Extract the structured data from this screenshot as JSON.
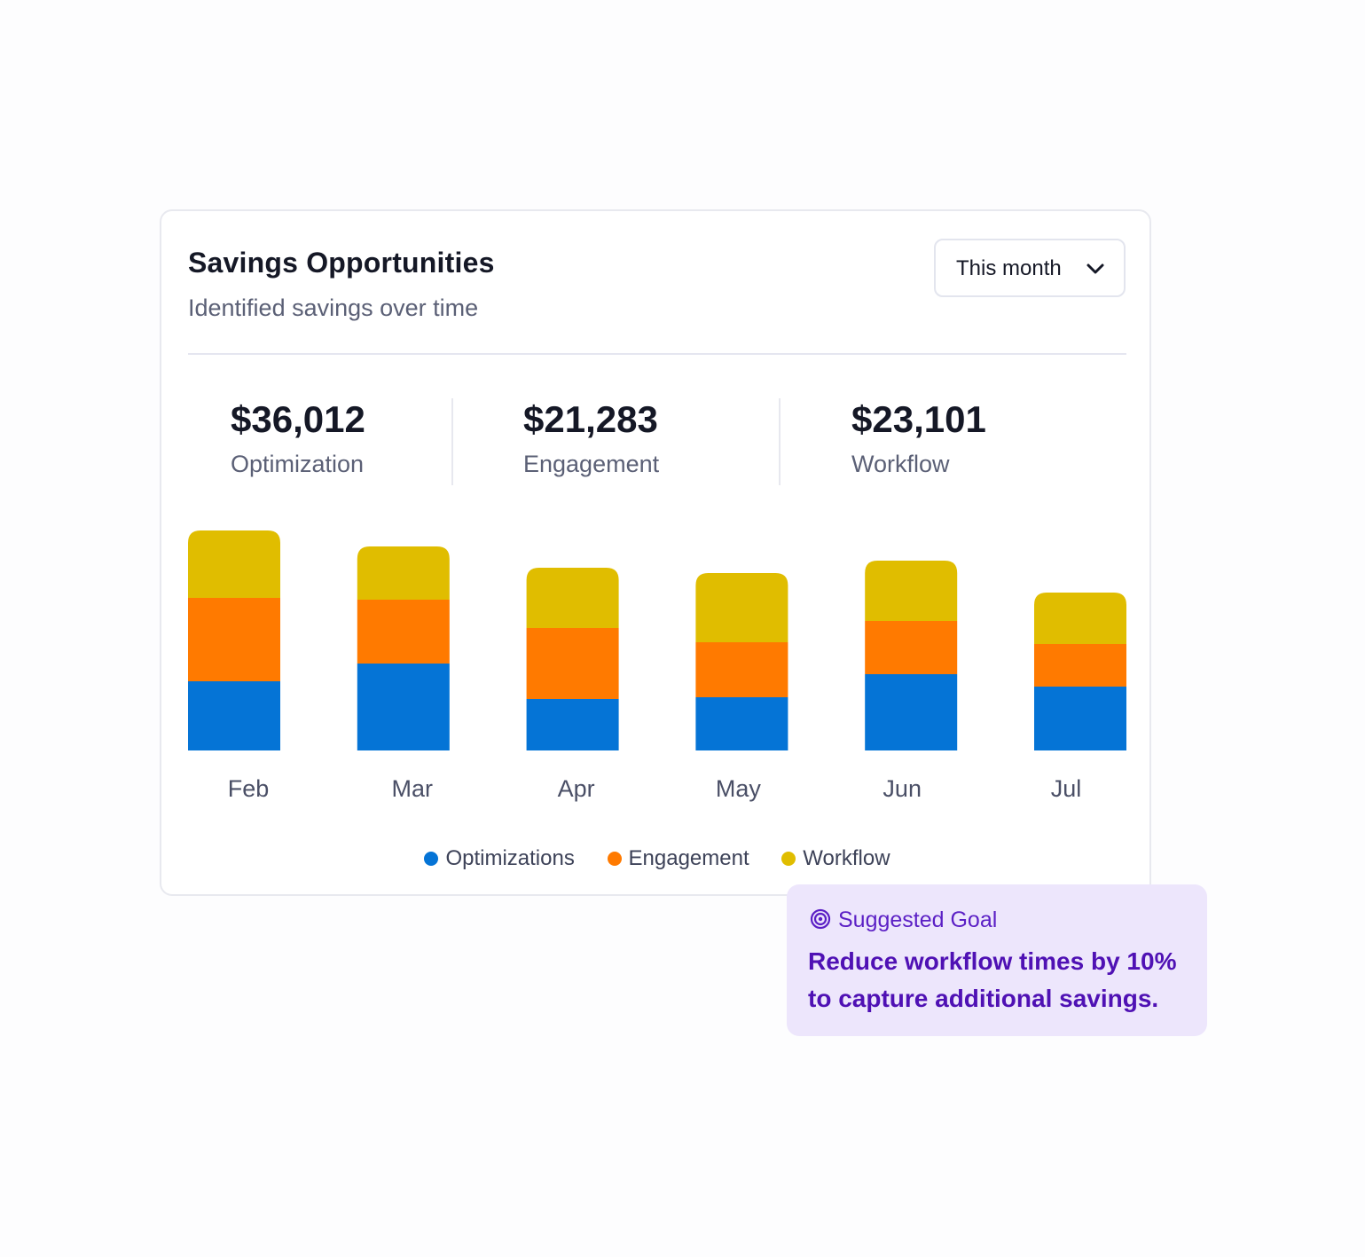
{
  "card": {
    "title": "Savings Opportunities",
    "subtitle": "Identified savings over time",
    "period_select": {
      "selected": "This month"
    }
  },
  "stats": [
    {
      "value": "$36,012",
      "caption": "Optimization"
    },
    {
      "value": "$21,283",
      "caption": "Engagement"
    },
    {
      "value": "$23,101",
      "caption": "Workflow"
    }
  ],
  "legend": [
    {
      "label": "Optimizations",
      "color": "#0574d6"
    },
    {
      "label": "Engagement",
      "color": "#ff7a00"
    },
    {
      "label": "Workflow",
      "color": "#e0bd00"
    }
  ],
  "chart_data": {
    "type": "bar",
    "stacked": true,
    "categories": [
      "Feb",
      "Mar",
      "Apr",
      "May",
      "Jun",
      "Jul"
    ],
    "series": [
      {
        "name": "Optimizations",
        "color": "#0574d6",
        "values": [
          78,
          98,
          58,
          60,
          86,
          72
        ]
      },
      {
        "name": "Engagement",
        "color": "#ff7a00",
        "values": [
          94,
          72,
          80,
          62,
          60,
          48
        ]
      },
      {
        "name": "Workflow",
        "color": "#e0bd00",
        "values": [
          76,
          60,
          68,
          78,
          68,
          58
        ]
      }
    ],
    "grid": false,
    "legend_position": "bottom"
  },
  "goal": {
    "label": "Suggested Goal",
    "text": "Reduce workflow times by 10% to capture additional savings."
  }
}
